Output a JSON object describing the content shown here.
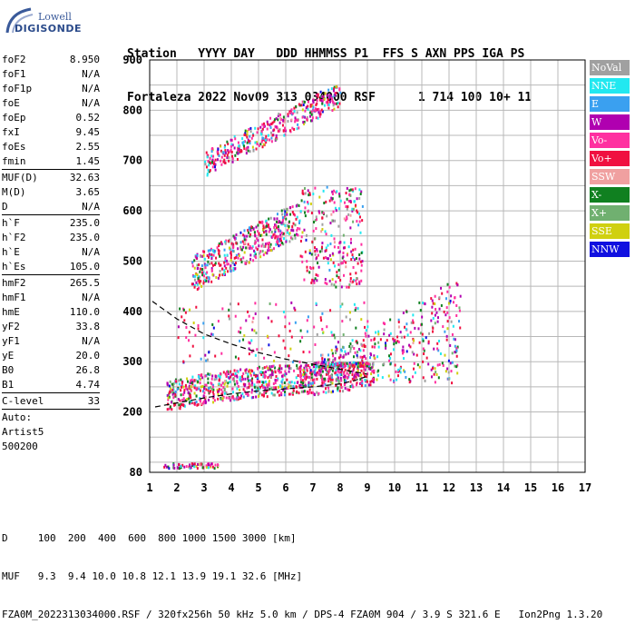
{
  "logo": {
    "line1": "Lowell",
    "line2": "DIGISONDE"
  },
  "header": {
    "line1": "Station   YYYY DAY   DDD HHMMSS P1  FFS S AXN PPS IGA PS",
    "line2": "Fortaleza 2022 Nov09 313 034000 RSF      1 714 100 10+ 11"
  },
  "params": [
    {
      "k": "foF2",
      "v": "8.950"
    },
    {
      "k": "foF1",
      "v": "N/A"
    },
    {
      "k": "foF1p",
      "v": "N/A"
    },
    {
      "k": "foE",
      "v": "N/A"
    },
    {
      "k": "foEp",
      "v": "0.52"
    },
    {
      "k": "fxI",
      "v": "9.45"
    },
    {
      "k": "foEs",
      "v": "2.55"
    },
    {
      "k": "fmin",
      "v": "1.45"
    },
    {
      "sep": true
    },
    {
      "k": "MUF(D)",
      "v": "32.63"
    },
    {
      "k": "M(D)",
      "v": "3.65"
    },
    {
      "k": "D",
      "v": "N/A"
    },
    {
      "sep": true
    },
    {
      "k": "h`F",
      "v": "235.0"
    },
    {
      "k": "h`F2",
      "v": "235.0"
    },
    {
      "k": "h`E",
      "v": "N/A"
    },
    {
      "k": "h`Es",
      "v": "105.0"
    },
    {
      "sep": true
    },
    {
      "k": "hmF2",
      "v": "265.5"
    },
    {
      "k": "hmF1",
      "v": "N/A"
    },
    {
      "k": "hmE",
      "v": "110.0"
    },
    {
      "k": "yF2",
      "v": "33.8"
    },
    {
      "k": "yF1",
      "v": "N/A"
    },
    {
      "k": "yE",
      "v": "20.0"
    },
    {
      "k": "B0",
      "v": "26.8"
    },
    {
      "k": "B1",
      "v": "4.74"
    },
    {
      "sep": true
    },
    {
      "k": "C-level",
      "v": "33"
    },
    {
      "sep": true
    },
    {
      "k": "Auto:",
      "v": ""
    },
    {
      "k": "Artist5",
      "v": ""
    },
    {
      "k": "500200",
      "v": ""
    }
  ],
  "legend": [
    {
      "label": "NoVal",
      "color": "#a0a0a0"
    },
    {
      "label": "NNE",
      "color": "#22e8f0"
    },
    {
      "label": "E",
      "color": "#3aa0f0"
    },
    {
      "label": "W",
      "color": "#b000b0"
    },
    {
      "label": "Vo-",
      "color": "#ff30a0"
    },
    {
      "label": "Vo+",
      "color": "#f01040"
    },
    {
      "label": "SSW",
      "color": "#f0a0a0"
    },
    {
      "label": "X-",
      "color": "#108020"
    },
    {
      "label": "X+",
      "color": "#70b070"
    },
    {
      "label": "SSE",
      "color": "#d0d010"
    },
    {
      "label": "NNW",
      "color": "#1010e0"
    }
  ],
  "footer": {
    "line1": "D     100  200  400  600  800 1000 1500 3000 [km]",
    "line2": "MUF   9.3  9.4 10.0 10.8 12.1 13.9 19.1 32.6 [MHz]",
    "line3": "FZA0M_2022313034000.RSF / 320fx256h 50 kHz 5.0 km / DPS-4 FZA0M 904 / 3.9 S 321.6 E   Ion2Png 1.3.20"
  },
  "chart_data": {
    "type": "scatter",
    "xlim": [
      1,
      17
    ],
    "ylim": [
      80,
      900
    ],
    "x_ticks": [
      1,
      2,
      3,
      4,
      5,
      6,
      7,
      8,
      9,
      10,
      11,
      12,
      13,
      14,
      15,
      16,
      17
    ],
    "y_ticks": [
      80,
      200,
      300,
      400,
      500,
      600,
      700,
      800,
      900
    ],
    "grid": true,
    "trace_lower": [
      [
        1.2,
        210
      ],
      [
        2,
        218
      ],
      [
        3,
        228
      ],
      [
        4,
        236
      ],
      [
        5,
        242
      ],
      [
        6,
        246
      ],
      [
        7,
        250
      ],
      [
        8,
        256
      ],
      [
        8.5,
        262
      ],
      [
        8.95,
        270
      ]
    ],
    "trace_upper": [
      [
        1.1,
        420
      ],
      [
        2,
        385
      ],
      [
        3,
        355
      ],
      [
        4,
        335
      ],
      [
        5,
        318
      ],
      [
        6,
        305
      ],
      [
        7,
        295
      ],
      [
        8,
        285
      ],
      [
        9,
        275
      ]
    ],
    "clusters": [
      {
        "name": "F-trace",
        "x": [
          1.6,
          9.2
        ],
        "y": [
          205,
          300
        ],
        "n": 900
      },
      {
        "name": "F-spread",
        "x": [
          7,
          12.4
        ],
        "y": [
          260,
          460
        ],
        "n": 420
      },
      {
        "name": "2F",
        "x": [
          2.5,
          8.8
        ],
        "y": [
          430,
          660
        ],
        "n": 700
      },
      {
        "name": "3F",
        "x": [
          3,
          8
        ],
        "y": [
          670,
          850
        ],
        "n": 380
      },
      {
        "name": "Es",
        "x": [
          1.5,
          3.5
        ],
        "y": [
          90,
          100
        ],
        "n": 70
      },
      {
        "name": "sparse",
        "x": [
          2,
          9
        ],
        "y": [
          300,
          420
        ],
        "n": 160
      }
    ]
  }
}
